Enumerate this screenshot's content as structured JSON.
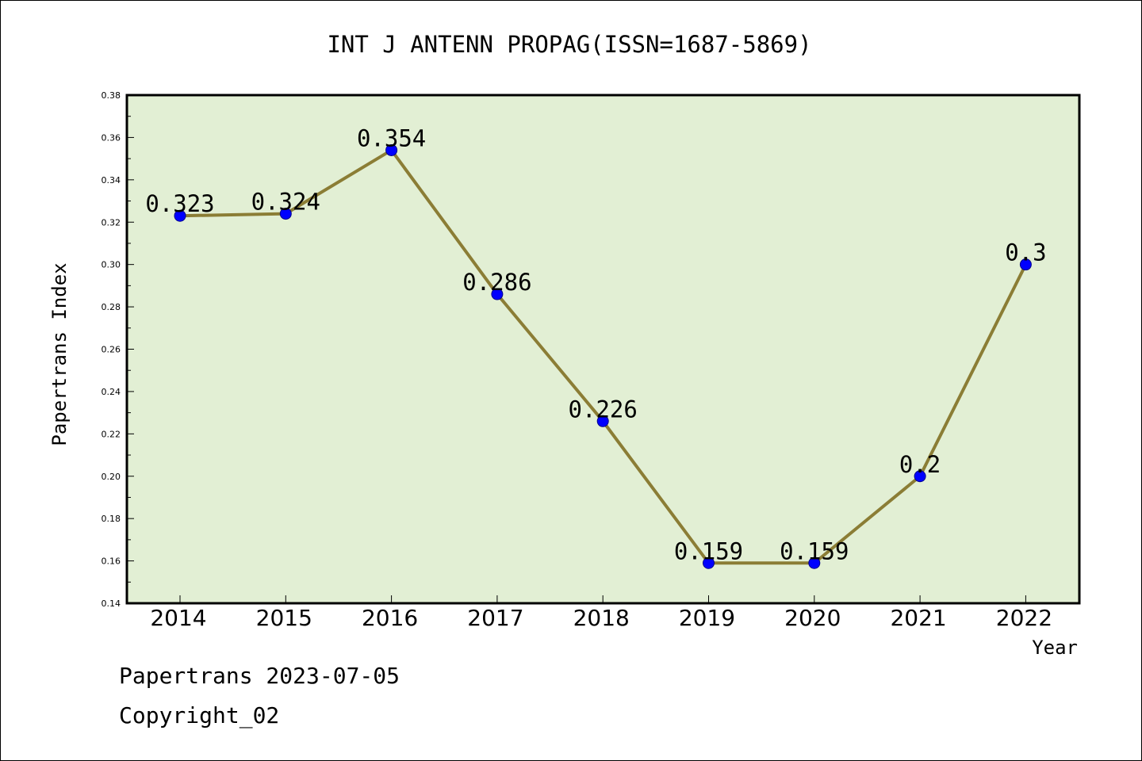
{
  "chart_data": {
    "type": "line",
    "title": "INT J ANTENN PROPAG(ISSN=1687-5869)",
    "xlabel": "Year",
    "ylabel": "Papertrans Index",
    "categories": [
      "2014",
      "2015",
      "2016",
      "2017",
      "2018",
      "2019",
      "2020",
      "2021",
      "2022"
    ],
    "series": [
      {
        "values": [
          0.323,
          0.324,
          0.354,
          0.286,
          0.226,
          0.159,
          0.159,
          0.2,
          0.3
        ],
        "labels": [
          "0.323",
          "0.324",
          "0.354",
          "0.286",
          "0.226",
          "0.159",
          "0.159",
          "0.2",
          "0.3"
        ]
      }
    ],
    "ylim": [
      0.14,
      0.38
    ],
    "yticks": [
      "0.14",
      "0.16",
      "0.18",
      "0.20",
      "0.22",
      "0.24",
      "0.26",
      "0.28",
      "0.30",
      "0.32",
      "0.34",
      "0.36",
      "0.38"
    ],
    "grid": false,
    "colors": {
      "plot_background": "#e2efd4",
      "line": "#8b7d35",
      "marker": "#0000ff",
      "marker_edge": "#00008b"
    }
  },
  "footer": {
    "line1": "Papertrans 2023-07-05",
    "line2": "Copyright_02"
  }
}
